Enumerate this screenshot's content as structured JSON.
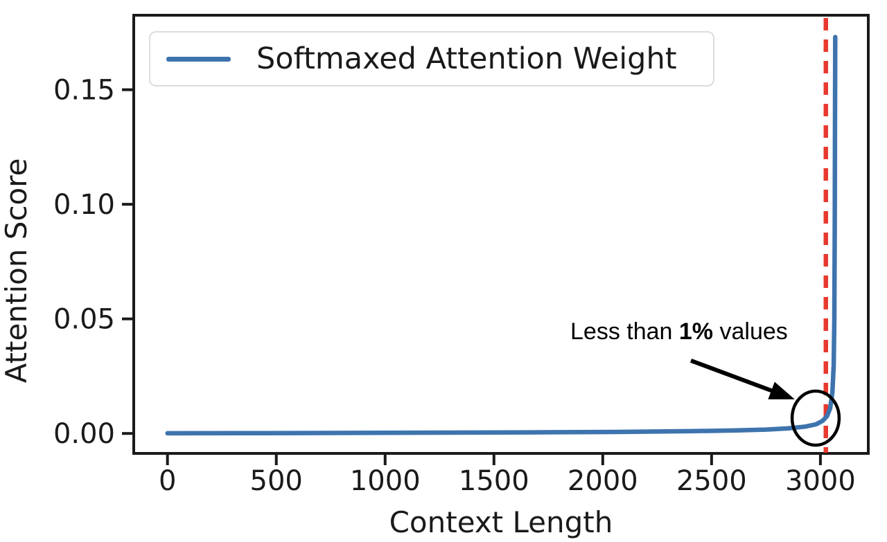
{
  "figure": {
    "background": "#ffffff",
    "text_color": "#1a1a1a"
  },
  "chart_data": {
    "type": "line",
    "title": "",
    "xlabel": "Context Length",
    "ylabel": "Attention Score",
    "xlim": [
      -155,
      3220
    ],
    "ylim": [
      -0.0087,
      0.1825
    ],
    "grid": false,
    "legend_position": "upper left",
    "x_axis": {
      "ticks": [
        {
          "value": 0,
          "label": "0"
        },
        {
          "value": 500,
          "label": "500"
        },
        {
          "value": 1000,
          "label": "1000"
        },
        {
          "value": 1500,
          "label": "1500"
        },
        {
          "value": 2000,
          "label": "2000"
        },
        {
          "value": 2500,
          "label": "2500"
        },
        {
          "value": 3000,
          "label": "3000"
        }
      ]
    },
    "y_axis": {
      "ticks": [
        {
          "value": 0.0,
          "label": "0.00"
        },
        {
          "value": 0.05,
          "label": "0.05"
        },
        {
          "value": 0.1,
          "label": "0.10"
        },
        {
          "value": 0.15,
          "label": "0.15"
        }
      ]
    },
    "series": [
      {
        "name": "Softmaxed Attention Weight",
        "color": "#3e74ae",
        "points": [
          [
            0,
            8e-05
          ],
          [
            300,
            0.00012
          ],
          [
            600,
            0.00018
          ],
          [
            1000,
            0.00028
          ],
          [
            1400,
            0.0004
          ],
          [
            1800,
            0.00055
          ],
          [
            2100,
            0.0007
          ],
          [
            2400,
            0.001
          ],
          [
            2600,
            0.0013
          ],
          [
            2750,
            0.0017
          ],
          [
            2850,
            0.0022
          ],
          [
            2930,
            0.003
          ],
          [
            2980,
            0.004
          ],
          [
            3010,
            0.0055
          ],
          [
            3030,
            0.0075
          ],
          [
            3045,
            0.011
          ],
          [
            3055,
            0.018
          ],
          [
            3061,
            0.03
          ],
          [
            3064,
            0.05
          ],
          [
            3066,
            0.09
          ],
          [
            3067,
            0.13
          ],
          [
            3068,
            0.173
          ]
        ]
      }
    ],
    "vline": {
      "x": 3025,
      "color": "#e8392e",
      "style": "dashed"
    },
    "annotation": {
      "text_parts": [
        "Less than ",
        "1%",
        " values"
      ],
      "color": "#000000",
      "arrow": {
        "from": [
          2405,
          0.0318
        ],
        "to": [
          2882,
          0.0149
        ]
      },
      "circle": {
        "x": 2978,
        "y": 0.0067,
        "rx": 108,
        "ry": 0.0118
      }
    }
  },
  "legend": {
    "entries": [
      {
        "label": "Softmaxed Attention Weight",
        "color": "#3e74ae"
      }
    ]
  }
}
